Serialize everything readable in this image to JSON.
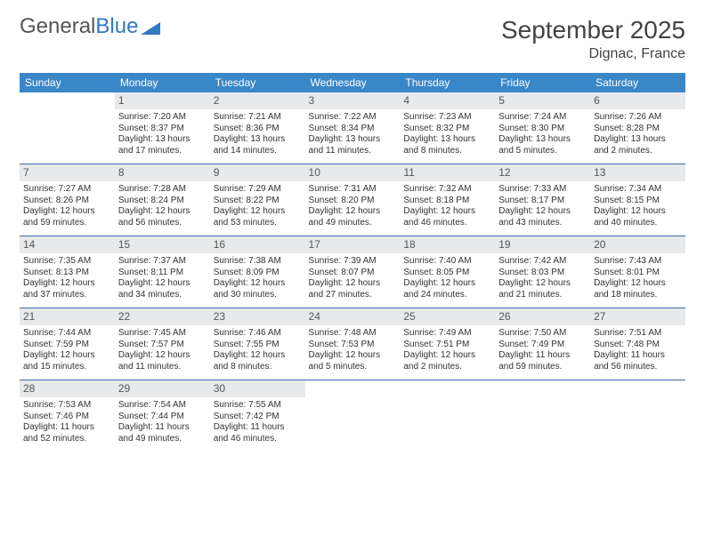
{
  "brand": {
    "part1": "General",
    "part2": "Blue"
  },
  "title": "September 2025",
  "location": "Dignac, France",
  "colors": {
    "header_bg": "#3a87c8",
    "header_text": "#ffffff",
    "daynum_bg": "#e7e9eb",
    "row_border": "#2f6fa8",
    "brand_blue": "#2f78c2",
    "text": "#333333"
  },
  "day_headers": [
    "Sunday",
    "Monday",
    "Tuesday",
    "Wednesday",
    "Thursday",
    "Friday",
    "Saturday"
  ],
  "weeks": [
    [
      {
        "n": "",
        "sr": "",
        "ss": "",
        "dl": ""
      },
      {
        "n": "1",
        "sr": "Sunrise: 7:20 AM",
        "ss": "Sunset: 8:37 PM",
        "dl": "Daylight: 13 hours and 17 minutes."
      },
      {
        "n": "2",
        "sr": "Sunrise: 7:21 AM",
        "ss": "Sunset: 8:36 PM",
        "dl": "Daylight: 13 hours and 14 minutes."
      },
      {
        "n": "3",
        "sr": "Sunrise: 7:22 AM",
        "ss": "Sunset: 8:34 PM",
        "dl": "Daylight: 13 hours and 11 minutes."
      },
      {
        "n": "4",
        "sr": "Sunrise: 7:23 AM",
        "ss": "Sunset: 8:32 PM",
        "dl": "Daylight: 13 hours and 8 minutes."
      },
      {
        "n": "5",
        "sr": "Sunrise: 7:24 AM",
        "ss": "Sunset: 8:30 PM",
        "dl": "Daylight: 13 hours and 5 minutes."
      },
      {
        "n": "6",
        "sr": "Sunrise: 7:26 AM",
        "ss": "Sunset: 8:28 PM",
        "dl": "Daylight: 13 hours and 2 minutes."
      }
    ],
    [
      {
        "n": "7",
        "sr": "Sunrise: 7:27 AM",
        "ss": "Sunset: 8:26 PM",
        "dl": "Daylight: 12 hours and 59 minutes."
      },
      {
        "n": "8",
        "sr": "Sunrise: 7:28 AM",
        "ss": "Sunset: 8:24 PM",
        "dl": "Daylight: 12 hours and 56 minutes."
      },
      {
        "n": "9",
        "sr": "Sunrise: 7:29 AM",
        "ss": "Sunset: 8:22 PM",
        "dl": "Daylight: 12 hours and 53 minutes."
      },
      {
        "n": "10",
        "sr": "Sunrise: 7:31 AM",
        "ss": "Sunset: 8:20 PM",
        "dl": "Daylight: 12 hours and 49 minutes."
      },
      {
        "n": "11",
        "sr": "Sunrise: 7:32 AM",
        "ss": "Sunset: 8:18 PM",
        "dl": "Daylight: 12 hours and 46 minutes."
      },
      {
        "n": "12",
        "sr": "Sunrise: 7:33 AM",
        "ss": "Sunset: 8:17 PM",
        "dl": "Daylight: 12 hours and 43 minutes."
      },
      {
        "n": "13",
        "sr": "Sunrise: 7:34 AM",
        "ss": "Sunset: 8:15 PM",
        "dl": "Daylight: 12 hours and 40 minutes."
      }
    ],
    [
      {
        "n": "14",
        "sr": "Sunrise: 7:35 AM",
        "ss": "Sunset: 8:13 PM",
        "dl": "Daylight: 12 hours and 37 minutes."
      },
      {
        "n": "15",
        "sr": "Sunrise: 7:37 AM",
        "ss": "Sunset: 8:11 PM",
        "dl": "Daylight: 12 hours and 34 minutes."
      },
      {
        "n": "16",
        "sr": "Sunrise: 7:38 AM",
        "ss": "Sunset: 8:09 PM",
        "dl": "Daylight: 12 hours and 30 minutes."
      },
      {
        "n": "17",
        "sr": "Sunrise: 7:39 AM",
        "ss": "Sunset: 8:07 PM",
        "dl": "Daylight: 12 hours and 27 minutes."
      },
      {
        "n": "18",
        "sr": "Sunrise: 7:40 AM",
        "ss": "Sunset: 8:05 PM",
        "dl": "Daylight: 12 hours and 24 minutes."
      },
      {
        "n": "19",
        "sr": "Sunrise: 7:42 AM",
        "ss": "Sunset: 8:03 PM",
        "dl": "Daylight: 12 hours and 21 minutes."
      },
      {
        "n": "20",
        "sr": "Sunrise: 7:43 AM",
        "ss": "Sunset: 8:01 PM",
        "dl": "Daylight: 12 hours and 18 minutes."
      }
    ],
    [
      {
        "n": "21",
        "sr": "Sunrise: 7:44 AM",
        "ss": "Sunset: 7:59 PM",
        "dl": "Daylight: 12 hours and 15 minutes."
      },
      {
        "n": "22",
        "sr": "Sunrise: 7:45 AM",
        "ss": "Sunset: 7:57 PM",
        "dl": "Daylight: 12 hours and 11 minutes."
      },
      {
        "n": "23",
        "sr": "Sunrise: 7:46 AM",
        "ss": "Sunset: 7:55 PM",
        "dl": "Daylight: 12 hours and 8 minutes."
      },
      {
        "n": "24",
        "sr": "Sunrise: 7:48 AM",
        "ss": "Sunset: 7:53 PM",
        "dl": "Daylight: 12 hours and 5 minutes."
      },
      {
        "n": "25",
        "sr": "Sunrise: 7:49 AM",
        "ss": "Sunset: 7:51 PM",
        "dl": "Daylight: 12 hours and 2 minutes."
      },
      {
        "n": "26",
        "sr": "Sunrise: 7:50 AM",
        "ss": "Sunset: 7:49 PM",
        "dl": "Daylight: 11 hours and 59 minutes."
      },
      {
        "n": "27",
        "sr": "Sunrise: 7:51 AM",
        "ss": "Sunset: 7:48 PM",
        "dl": "Daylight: 11 hours and 56 minutes."
      }
    ],
    [
      {
        "n": "28",
        "sr": "Sunrise: 7:53 AM",
        "ss": "Sunset: 7:46 PM",
        "dl": "Daylight: 11 hours and 52 minutes."
      },
      {
        "n": "29",
        "sr": "Sunrise: 7:54 AM",
        "ss": "Sunset: 7:44 PM",
        "dl": "Daylight: 11 hours and 49 minutes."
      },
      {
        "n": "30",
        "sr": "Sunrise: 7:55 AM",
        "ss": "Sunset: 7:42 PM",
        "dl": "Daylight: 11 hours and 46 minutes."
      },
      {
        "n": "",
        "sr": "",
        "ss": "",
        "dl": ""
      },
      {
        "n": "",
        "sr": "",
        "ss": "",
        "dl": ""
      },
      {
        "n": "",
        "sr": "",
        "ss": "",
        "dl": ""
      },
      {
        "n": "",
        "sr": "",
        "ss": "",
        "dl": ""
      }
    ]
  ]
}
